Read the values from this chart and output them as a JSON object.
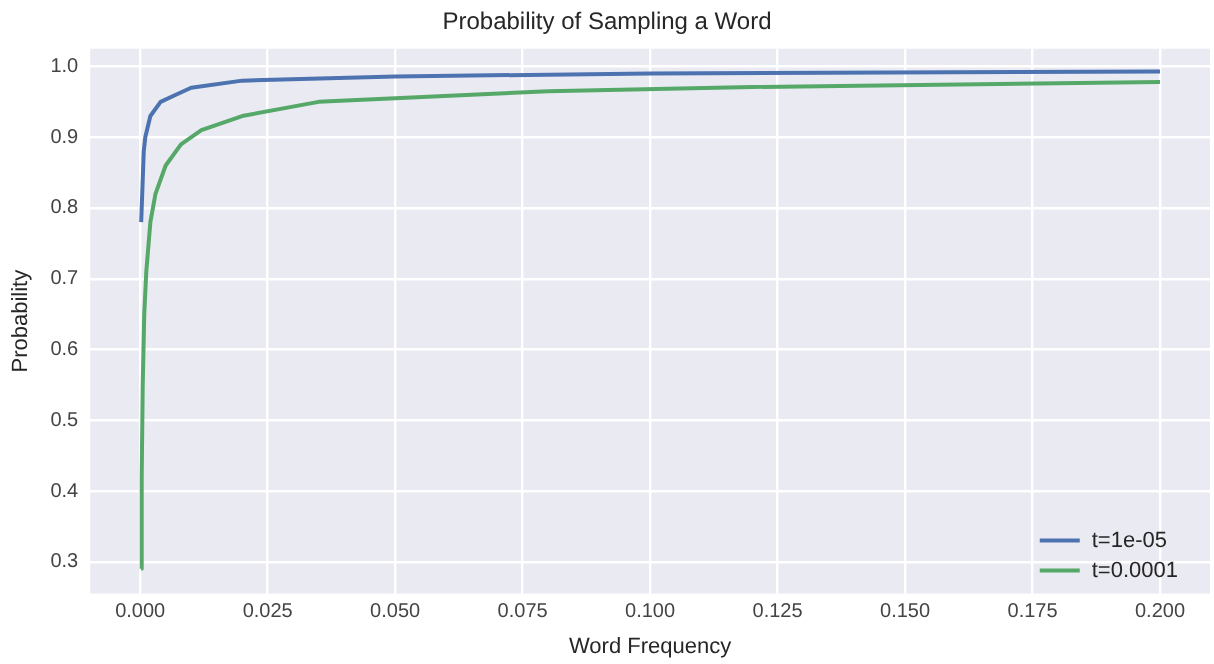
{
  "chart_data": {
    "type": "line",
    "title": "Probability of Sampling a Word",
    "xlabel": "Word Frequency",
    "ylabel": "Probability",
    "xlim": [
      -0.0098,
      0.2098
    ],
    "ylim": [
      0.255,
      1.025
    ],
    "xticks": [
      {
        "value": 0,
        "label": "0.000"
      },
      {
        "value": 0.025,
        "label": "0.025"
      },
      {
        "value": 0.05,
        "label": "0.050"
      },
      {
        "value": 0.075,
        "label": "0.075"
      },
      {
        "value": 0.1,
        "label": "0.100"
      },
      {
        "value": 0.125,
        "label": "0.125"
      },
      {
        "value": 0.15,
        "label": "0.150"
      },
      {
        "value": 0.175,
        "label": "0.175"
      },
      {
        "value": 0.2,
        "label": "0.200"
      }
    ],
    "yticks": [
      {
        "value": 0.3,
        "label": "0.3"
      },
      {
        "value": 0.4,
        "label": "0.4"
      },
      {
        "value": 0.5,
        "label": "0.5"
      },
      {
        "value": 0.6,
        "label": "0.6"
      },
      {
        "value": 0.7,
        "label": "0.7"
      },
      {
        "value": 0.8,
        "label": "0.8"
      },
      {
        "value": 0.9,
        "label": "0.9"
      },
      {
        "value": 1,
        "label": "1.0"
      }
    ],
    "grid": true,
    "legend": "bottom right",
    "marker": "none",
    "line_style": "solid",
    "series": [
      {
        "name": "t=1e-05",
        "color": "#4c72b0",
        "x": [
          0.0002,
          0.0007,
          0.001,
          0.002,
          0.004,
          0.007,
          0.01,
          0.02,
          0.05,
          0.1,
          0.2
        ],
        "values": [
          0.78,
          0.88,
          0.9,
          0.93,
          0.95,
          0.96,
          0.97,
          0.98,
          0.986,
          0.99,
          0.993
        ]
      },
      {
        "name": "t=0.0001",
        "color": "#55a868",
        "x": [
          0.0002,
          0.0003,
          0.0005,
          0.0008,
          0.0012,
          0.002,
          0.003,
          0.005,
          0.008,
          0.012,
          0.02,
          0.035,
          0.05,
          0.08,
          0.12,
          0.2
        ],
        "values": [
          0.29,
          0.42,
          0.55,
          0.65,
          0.71,
          0.78,
          0.82,
          0.86,
          0.89,
          0.91,
          0.93,
          0.95,
          0.955,
          0.965,
          0.971,
          0.978
        ]
      }
    ]
  }
}
